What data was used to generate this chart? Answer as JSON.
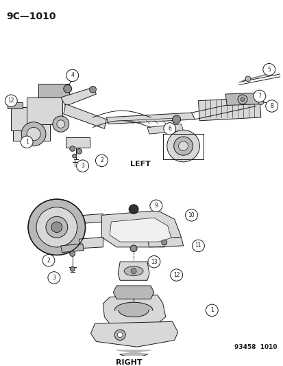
{
  "title_code": "9C—1010",
  "label_left": "LEFT",
  "label_right": "RIGHT",
  "footer": "93458  1010",
  "bg_color": "#ffffff",
  "line_color": "#1a1a1a",
  "gray_light": "#d8d8d8",
  "gray_mid": "#b8b8b8",
  "gray_dark": "#909090",
  "title_fontsize": 10,
  "label_fontsize": 8,
  "footer_fontsize": 6.5,
  "fig_width": 4.14,
  "fig_height": 5.33,
  "dpi": 100
}
